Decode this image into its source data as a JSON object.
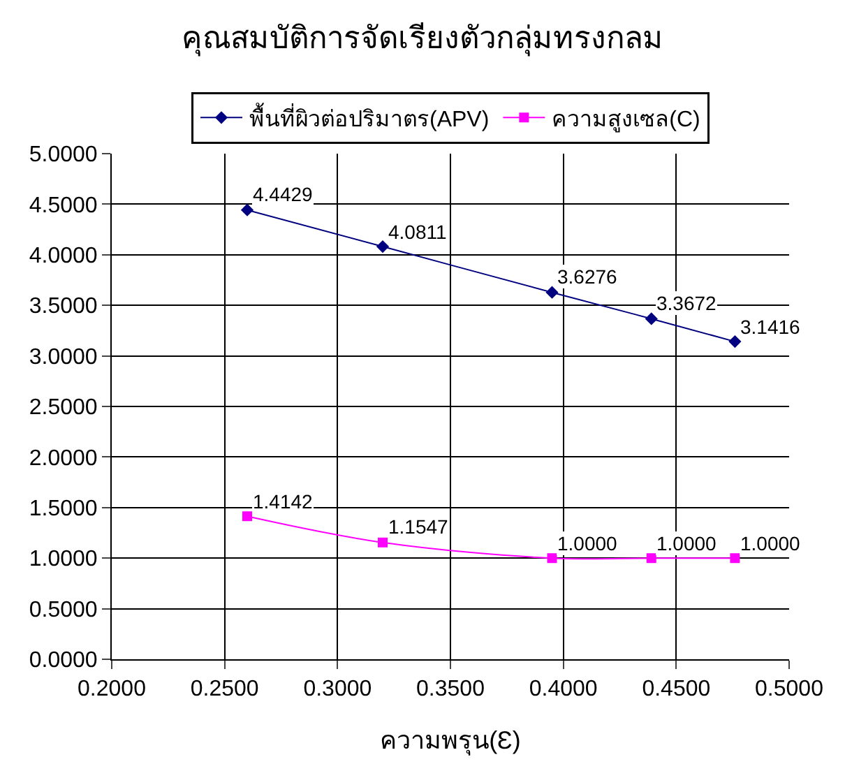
{
  "chart_data": {
    "type": "line",
    "title": "คุณสมบัติการจัดเรียงตัวกลุ่มทรงกลม",
    "xlabel": "ความพรุน(Ɛ)",
    "x": [
      0.26,
      0.32,
      0.395,
      0.439,
      0.476
    ],
    "series": [
      {
        "name": "พื้นที่ผิวต่อปริมาตร(APV)",
        "color": "#000080",
        "marker": "diamond",
        "values": [
          4.4429,
          4.0811,
          3.6276,
          3.3672,
          3.1416
        ],
        "value_labels": [
          "4.4429",
          "4.0811",
          "3.6276",
          "3.3672",
          "3.1416"
        ]
      },
      {
        "name": "ความสูงเซล(C)",
        "color": "#ff00ff",
        "marker": "square",
        "values": [
          1.4142,
          1.1547,
          1.0,
          1.0,
          1.0
        ],
        "value_labels": [
          "1.4142",
          "1.1547",
          "1.0000",
          "1.0000",
          "1.0000"
        ]
      }
    ],
    "xlim": [
      0.2,
      0.5
    ],
    "xticks": [
      {
        "value": 0.2,
        "label": "0.2000"
      },
      {
        "value": 0.25,
        "label": "0.2500"
      },
      {
        "value": 0.3,
        "label": "0.3000"
      },
      {
        "value": 0.35,
        "label": "0.3500"
      },
      {
        "value": 0.4,
        "label": "0.4000"
      },
      {
        "value": 0.45,
        "label": "0.4500"
      },
      {
        "value": 0.5,
        "label": "0.5000"
      }
    ],
    "ylim": [
      0,
      5
    ],
    "yticks": [
      {
        "value": 0,
        "label": "0.0000"
      },
      {
        "value": 0.5,
        "label": "0.5000"
      },
      {
        "value": 1,
        "label": "1.0000"
      },
      {
        "value": 1.5,
        "label": "1.5000"
      },
      {
        "value": 2,
        "label": "2.0000"
      },
      {
        "value": 2.5,
        "label": "2.5000"
      },
      {
        "value": 3,
        "label": "3.0000"
      },
      {
        "value": 3.5,
        "label": "3.5000"
      },
      {
        "value": 4,
        "label": "4.0000"
      },
      {
        "value": 4.5,
        "label": "4.5000"
      },
      {
        "value": 5,
        "label": "5.0000"
      }
    ],
    "grid": true,
    "legend": "top",
    "line_style": "solid"
  }
}
